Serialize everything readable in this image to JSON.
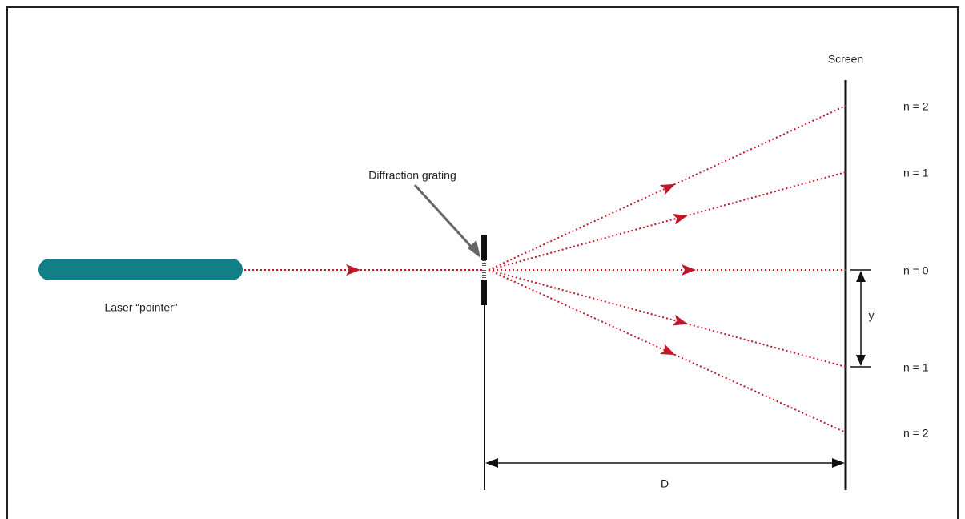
{
  "labels": {
    "screen": "Screen",
    "grating": "Diffraction grating",
    "laser": "Laser “pointer”",
    "y": "y",
    "D": "D"
  },
  "orders": [
    "n = 2",
    "n = 1",
    "n = 0",
    "n = 1",
    "n = 2"
  ]
}
